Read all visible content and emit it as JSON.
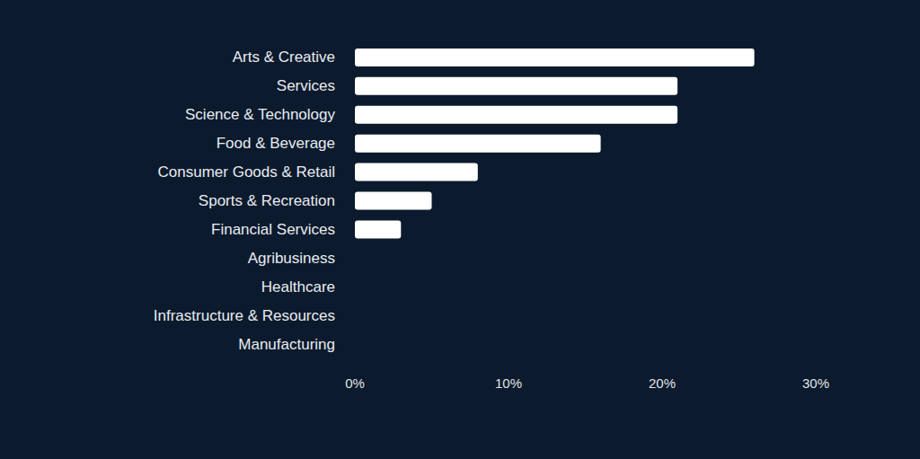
{
  "chart_data": {
    "type": "bar",
    "orientation": "horizontal",
    "categories": [
      "Arts & Creative",
      "Services",
      "Science & Technology",
      "Food & Beverage",
      "Consumer Goods & Retail",
      "Sports & Recreation",
      "Financial Services",
      "Agribusiness",
      "Healthcare",
      "Infrastructure & Resources",
      "Manufacturing"
    ],
    "values": [
      26,
      21,
      21,
      16,
      8,
      5,
      3,
      0,
      0,
      0,
      0
    ],
    "color": "#ffffff",
    "xlim": [
      0,
      30
    ],
    "xticks": [
      {
        "value": 0,
        "label": "0%"
      },
      {
        "value": 10,
        "label": "10%"
      },
      {
        "value": 20,
        "label": "20%"
      },
      {
        "value": 30,
        "label": "30%"
      }
    ],
    "grid": false
  }
}
